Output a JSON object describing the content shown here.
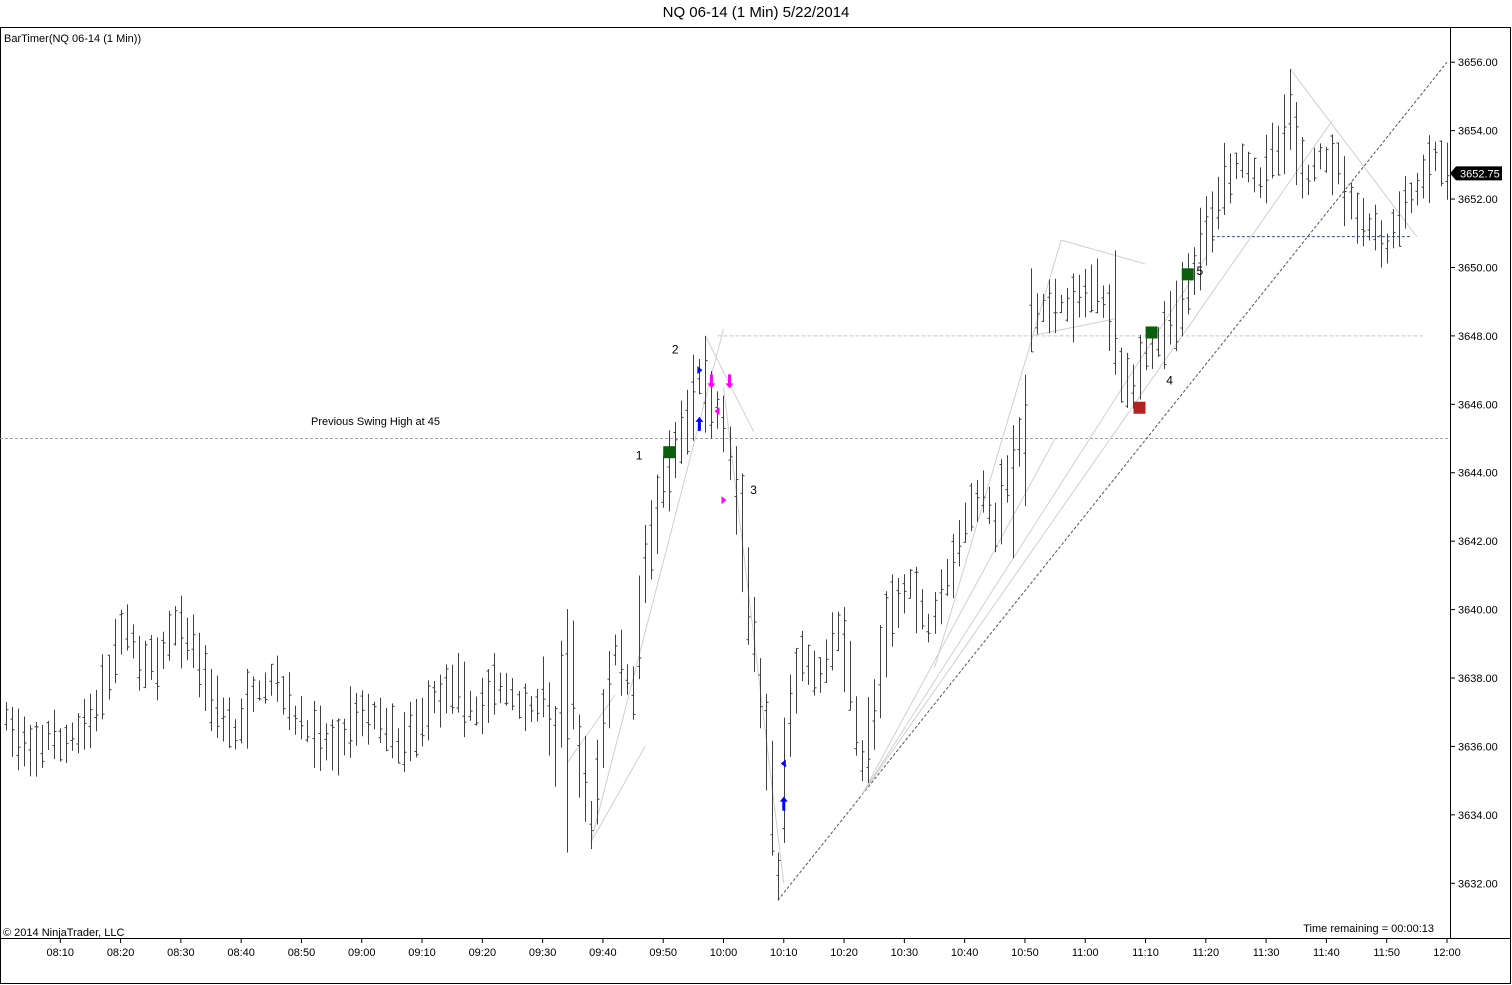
{
  "window_title": "NQ 06-14 (1 Min)  5/22/2014",
  "indicator_label": "BarTimer(NQ 06-14 (1 Min))",
  "copyright": "© 2014 NinjaTrader, LLC",
  "time_remaining": "Time remaining = 00:00:13",
  "colors": {
    "bar": "#404040",
    "grid_line": "#a0a0a0",
    "trend_line": "#cfcfcf",
    "long_marker": "#0b5e0b",
    "stop_marker": "#b22222",
    "signal_arrow_up": "#0000ff",
    "signal_arrow_down": "#ff00ff",
    "price_label_bg": "#000000",
    "price_label_text": "#ffffff"
  },
  "chart_data": {
    "type": "ohlc",
    "symbol": "NQ 06-14",
    "interval": "1 Min",
    "date": "5/22/2014",
    "x_ticks": [
      "08:10",
      "08:20",
      "08:30",
      "08:40",
      "08:50",
      "09:00",
      "09:10",
      "09:20",
      "09:30",
      "09:40",
      "09:50",
      "10:00",
      "10:10",
      "10:20",
      "10:30",
      "10:40",
      "10:50",
      "11:00",
      "11:10",
      "11:20",
      "11:30",
      "11:40",
      "11:50",
      "12:00"
    ],
    "y_ticks": [
      "3632.00",
      "3634.00",
      "3636.00",
      "3638.00",
      "3640.00",
      "3642.00",
      "3644.00",
      "3646.00",
      "3648.00",
      "3650.00",
      "3652.00",
      "3654.00",
      "3656.00"
    ],
    "ylim": [
      3630.4,
      3657.0
    ],
    "x_range_minutes": [
      480,
      720.5
    ],
    "last_price": "3652.75",
    "annotation": "Previous Swing High at 45",
    "swing_high_level": 3645.0,
    "horizontal_levels": [
      {
        "price": 3648.0,
        "from": "09:59",
        "to": "11:56",
        "style": "solid-light"
      },
      {
        "price": 3650.9,
        "from": "11:21",
        "to": "11:54",
        "style": "dashed-dark"
      }
    ],
    "anchors": [
      {
        "t": "08:01",
        "p": 3636.8
      },
      {
        "t": "08:05",
        "p": 3635.7
      },
      {
        "t": "08:08",
        "p": 3636.3
      },
      {
        "t": "08:10",
        "p": 3636.0
      },
      {
        "t": "08:13",
        "p": 3636.4
      },
      {
        "t": "08:16",
        "p": 3637.0
      },
      {
        "t": "08:18",
        "p": 3638.0
      },
      {
        "t": "08:20",
        "p": 3639.8
      },
      {
        "t": "08:23",
        "p": 3638.6
      },
      {
        "t": "08:26",
        "p": 3638.3
      },
      {
        "t": "08:29",
        "p": 3639.5
      },
      {
        "t": "08:32",
        "p": 3639.0
      },
      {
        "t": "08:35",
        "p": 3637.5
      },
      {
        "t": "08:39",
        "p": 3636.3
      },
      {
        "t": "08:42",
        "p": 3637.5
      },
      {
        "t": "08:46",
        "p": 3638.0
      },
      {
        "t": "08:49",
        "p": 3636.8
      },
      {
        "t": "08:53",
        "p": 3636.2
      },
      {
        "t": "08:56",
        "p": 3636.0
      },
      {
        "t": "08:59",
        "p": 3637.0
      },
      {
        "t": "09:03",
        "p": 3636.8
      },
      {
        "t": "09:06",
        "p": 3636.0
      },
      {
        "t": "09:09",
        "p": 3636.5
      },
      {
        "t": "09:12",
        "p": 3637.4
      },
      {
        "t": "09:15",
        "p": 3637.8
      },
      {
        "t": "09:19",
        "p": 3637.0
      },
      {
        "t": "09:22",
        "p": 3637.8
      },
      {
        "t": "09:25",
        "p": 3637.5
      },
      {
        "t": "09:28",
        "p": 3637.0
      },
      {
        "t": "09:30",
        "p": 3637.6
      },
      {
        "t": "09:32",
        "p": 3636.0
      },
      {
        "t": "09:34",
        "p": 3639.5
      },
      {
        "t": "09:36",
        "p": 3635.8
      },
      {
        "t": "09:38",
        "p": 3633.8
      },
      {
        "t": "09:40",
        "p": 3636.5
      },
      {
        "t": "09:42",
        "p": 3638.8
      },
      {
        "t": "09:45",
        "p": 3637.5
      },
      {
        "t": "09:47",
        "p": 3641.5
      },
      {
        "t": "09:50",
        "p": 3643.5
      },
      {
        "t": "09:52",
        "p": 3644.5
      },
      {
        "t": "09:54",
        "p": 3645.5
      },
      {
        "t": "09:56",
        "p": 3646.8
      },
      {
        "t": "09:58",
        "p": 3646.0
      },
      {
        "t": "10:00",
        "p": 3645.5
      },
      {
        "t": "10:02",
        "p": 3643.5
      },
      {
        "t": "10:04",
        "p": 3640.5
      },
      {
        "t": "10:06",
        "p": 3637.5
      },
      {
        "t": "10:08",
        "p": 3634.0
      },
      {
        "t": "10:09",
        "p": 3632.0
      },
      {
        "t": "10:11",
        "p": 3637.0
      },
      {
        "t": "10:13",
        "p": 3638.5
      },
      {
        "t": "10:16",
        "p": 3638.0
      },
      {
        "t": "10:19",
        "p": 3639.5
      },
      {
        "t": "10:21",
        "p": 3638.0
      },
      {
        "t": "10:23",
        "p": 3635.5
      },
      {
        "t": "10:25",
        "p": 3637.0
      },
      {
        "t": "10:28",
        "p": 3640.0
      },
      {
        "t": "10:31",
        "p": 3640.8
      },
      {
        "t": "10:34",
        "p": 3639.5
      },
      {
        "t": "10:37",
        "p": 3641.0
      },
      {
        "t": "10:40",
        "p": 3642.5
      },
      {
        "t": "10:43",
        "p": 3643.5
      },
      {
        "t": "10:45",
        "p": 3642.5
      },
      {
        "t": "10:48",
        "p": 3644.5
      },
      {
        "t": "10:50",
        "p": 3645.0
      },
      {
        "t": "10:51",
        "p": 3648.5
      },
      {
        "t": "10:55",
        "p": 3649.0
      },
      {
        "t": "10:58",
        "p": 3648.8
      },
      {
        "t": "11:01",
        "p": 3649.5
      },
      {
        "t": "11:04",
        "p": 3648.8
      },
      {
        "t": "11:06",
        "p": 3647.0
      },
      {
        "t": "11:08",
        "p": 3646.6
      },
      {
        "t": "11:10",
        "p": 3647.5
      },
      {
        "t": "11:13",
        "p": 3648.0
      },
      {
        "t": "11:16",
        "p": 3649.0
      },
      {
        "t": "11:18",
        "p": 3650.0
      },
      {
        "t": "11:20",
        "p": 3651.0
      },
      {
        "t": "11:23",
        "p": 3652.6
      },
      {
        "t": "11:26",
        "p": 3653.2
      },
      {
        "t": "11:29",
        "p": 3652.6
      },
      {
        "t": "11:32",
        "p": 3653.5
      },
      {
        "t": "11:34",
        "p": 3654.2
      },
      {
        "t": "11:37",
        "p": 3652.5
      },
      {
        "t": "11:39",
        "p": 3653.3
      },
      {
        "t": "11:42",
        "p": 3653.0
      },
      {
        "t": "11:45",
        "p": 3651.5
      },
      {
        "t": "11:48",
        "p": 3651.0
      },
      {
        "t": "11:50",
        "p": 3650.6
      },
      {
        "t": "11:53",
        "p": 3651.8
      },
      {
        "t": "11:56",
        "p": 3652.5
      },
      {
        "t": "11:58",
        "p": 3653.2
      },
      {
        "t": "12:00",
        "p": 3652.8
      }
    ],
    "bar_spikes": [
      {
        "t": "08:20",
        "high": 3640.0
      },
      {
        "t": "08:29",
        "high": 3640.1
      },
      {
        "t": "09:34",
        "low": 3632.9
      },
      {
        "t": "09:38",
        "low": 3633.0
      },
      {
        "t": "09:57",
        "high": 3648.0
      },
      {
        "t": "10:09",
        "low": 3631.5
      },
      {
        "t": "10:48",
        "low": 3641.5
      },
      {
        "t": "11:05",
        "high": 3650.5
      },
      {
        "t": "11:34",
        "high": 3655.8
      },
      {
        "t": "11:49",
        "low": 3650.0
      }
    ],
    "trend_lines": [
      {
        "from": {
          "t": "10:09",
          "p": 3631.5
        },
        "to": {
          "t": "12:00",
          "p": 3656.0
        },
        "style": "dashed"
      },
      {
        "from": {
          "t": "10:23",
          "p": 3634.6
        },
        "to": {
          "t": "11:41",
          "p": 3654.3
        },
        "style": "light"
      },
      {
        "from": {
          "t": "10:23",
          "p": 3634.6
        },
        "to": {
          "t": "11:20",
          "p": 3650.3
        },
        "style": "light"
      },
      {
        "from": {
          "t": "10:23",
          "p": 3634.6
        },
        "to": {
          "t": "10:55",
          "p": 3645.0
        },
        "style": "light"
      },
      {
        "from": {
          "t": "10:35",
          "p": 3638.3
        },
        "to": {
          "t": "10:56",
          "p": 3650.8
        },
        "style": "light"
      },
      {
        "from": {
          "t": "10:56",
          "p": 3650.8
        },
        "to": {
          "t": "11:10",
          "p": 3650.1
        },
        "style": "light"
      },
      {
        "from": {
          "t": "10:51",
          "p": 3648.0
        },
        "to": {
          "t": "11:05",
          "p": 3648.5
        },
        "style": "light"
      },
      {
        "from": {
          "t": "11:34",
          "p": 3655.8
        },
        "to": {
          "t": "11:55",
          "p": 3650.9
        },
        "style": "light"
      },
      {
        "from": {
          "t": "09:34",
          "p": 3635.5
        },
        "to": {
          "t": "09:42",
          "p": 3637.5
        },
        "style": "light"
      },
      {
        "from": {
          "t": "09:38",
          "p": 3633.2
        },
        "to": {
          "t": "09:47",
          "p": 3636.0
        },
        "style": "light"
      },
      {
        "from": {
          "t": "09:38",
          "p": 3633.2
        },
        "to": {
          "t": "10:00",
          "p": 3648.2
        },
        "style": "light"
      },
      {
        "from": {
          "t": "09:57",
          "p": 3648.0
        },
        "to": {
          "t": "10:05",
          "p": 3645.2
        },
        "style": "light"
      },
      {
        "from": {
          "t": "10:00",
          "p": 3646.5
        },
        "to": {
          "t": "10:10",
          "p": 3632.0
        },
        "style": "light"
      }
    ],
    "markers": [
      {
        "kind": "square-green",
        "t": "09:51",
        "p": 3644.6
      },
      {
        "kind": "square-green",
        "t": "11:11",
        "p": 3648.1
      },
      {
        "kind": "square-green",
        "t": "11:17",
        "p": 3649.8
      },
      {
        "kind": "square-red",
        "t": "11:09",
        "p": 3645.9
      },
      {
        "kind": "arrow-up-blue",
        "t": "09:56",
        "p": 3645.4
      },
      {
        "kind": "arrow-up-blue",
        "t": "10:10",
        "p": 3634.3
      },
      {
        "kind": "arrow-down-magenta",
        "t": "09:58",
        "p": 3646.7
      },
      {
        "kind": "arrow-down-magenta",
        "t": "10:01",
        "p": 3646.7
      },
      {
        "kind": "tri-right-blue",
        "t": "09:56",
        "p": 3647.0
      },
      {
        "kind": "tri-left-magenta",
        "t": "09:59",
        "p": 3645.8
      },
      {
        "kind": "tri-right-magenta",
        "t": "10:00",
        "p": 3643.2
      },
      {
        "kind": "tri-left-blue",
        "t": "10:10",
        "p": 3635.5
      }
    ],
    "wave_labels": [
      {
        "text": "1",
        "t": "09:46",
        "p": 3644.5
      },
      {
        "text": "2",
        "t": "09:52",
        "p": 3647.6
      },
      {
        "text": "3",
        "t": "10:05",
        "p": 3643.5
      },
      {
        "text": "4",
        "t": "11:14",
        "p": 3646.7
      },
      {
        "text": "5",
        "t": "11:19",
        "p": 3649.9
      }
    ]
  }
}
